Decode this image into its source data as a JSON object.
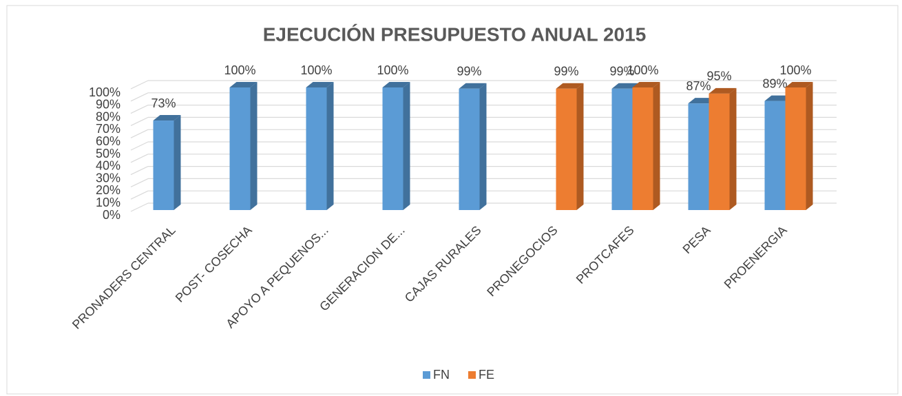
{
  "chart_data": {
    "type": "bar3d",
    "title": "EJECUCIÓN PRESUPUESTO ANUAL 2015",
    "categories": [
      "PRONADERS CENTRAL",
      "POST- COSECHA",
      "APOYO A PEQUENOS...",
      "GENERACION DE...",
      "CAJAS RURALES",
      "PRONEGOCIOS",
      "PROTCAFES",
      "PESA",
      "PROENERGIA"
    ],
    "series": [
      {
        "name": "FN",
        "color": "#5b9bd5",
        "side": "#41719c",
        "values": [
          73,
          100,
          100,
          100,
          99,
          null,
          99,
          87,
          89
        ],
        "value_labels": [
          "73%",
          "100%",
          "100%",
          "100%",
          "99%",
          null,
          "99%",
          "87%",
          "89%"
        ]
      },
      {
        "name": "FE",
        "color": "#ed7d31",
        "side": "#ae5a21",
        "values": [
          null,
          null,
          null,
          null,
          null,
          99,
          100,
          95,
          100
        ],
        "value_labels": [
          null,
          null,
          null,
          null,
          null,
          "99%",
          "100%",
          "95%",
          "100%"
        ]
      }
    ],
    "ylim": [
      0,
      100
    ],
    "yticks": [
      {
        "value": 0,
        "label": "0%"
      },
      {
        "value": 10,
        "label": "10%"
      },
      {
        "value": 20,
        "label": "20%"
      },
      {
        "value": 30,
        "label": "30%"
      },
      {
        "value": 40,
        "label": "40%"
      },
      {
        "value": 50,
        "label": "50%"
      },
      {
        "value": 60,
        "label": "60%"
      },
      {
        "value": 70,
        "label": "70%"
      },
      {
        "value": 80,
        "label": "80%"
      },
      {
        "value": 90,
        "label": "90%"
      },
      {
        "value": 100,
        "label": "100%"
      }
    ],
    "grid": true,
    "legend": "bottom"
  }
}
